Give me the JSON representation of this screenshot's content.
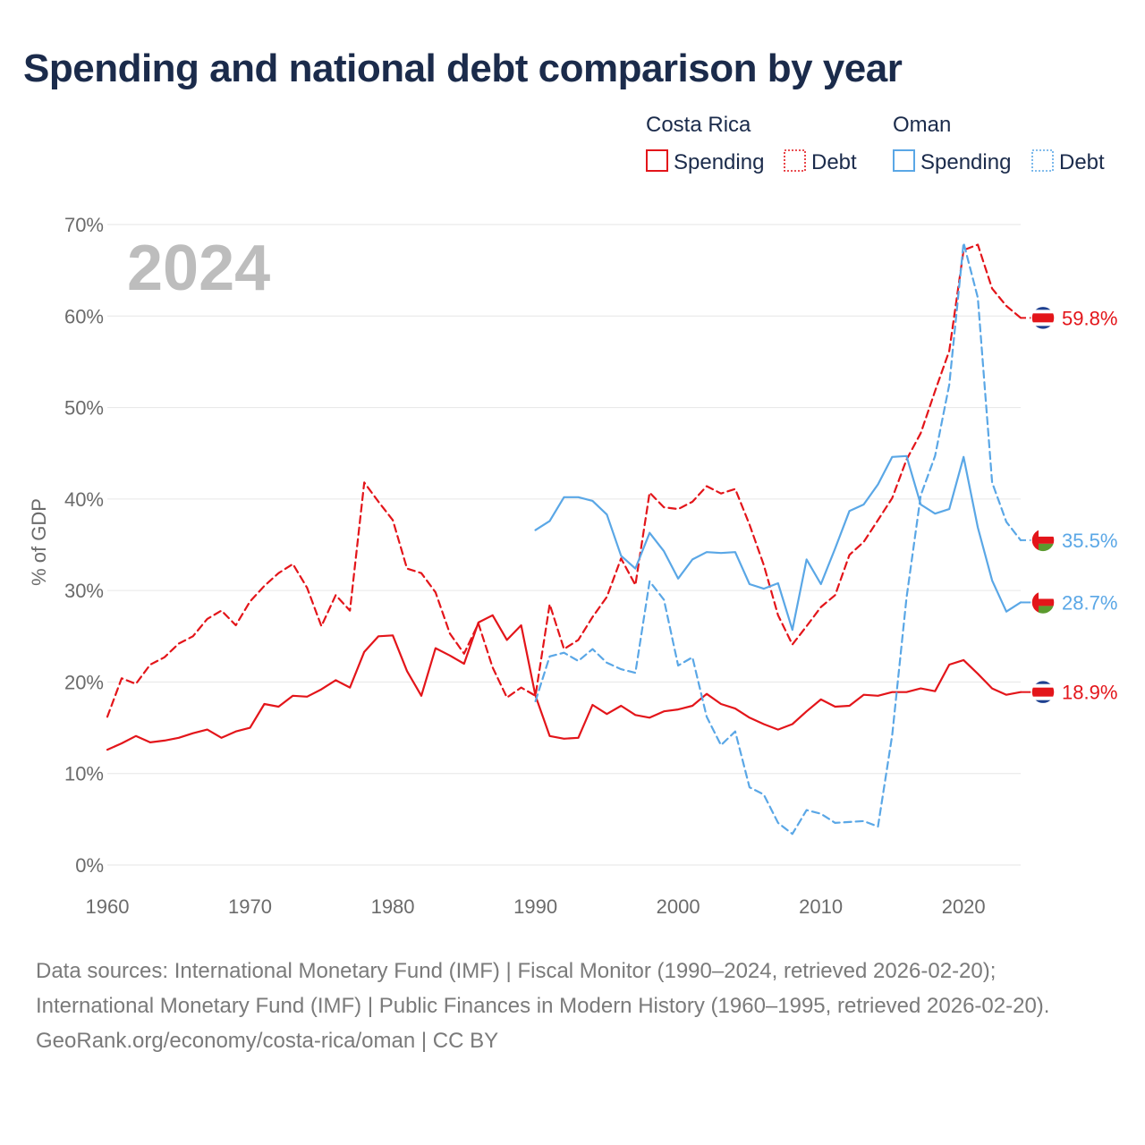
{
  "title": "Spending and national debt comparison by year",
  "colors": {
    "costa_rica": "#e3151a",
    "oman": "#5aa7e6",
    "grid": "#e6e6e6",
    "tick": "#6b6b6b",
    "title": "#1b2b4b",
    "watermark": "#bdbdbd",
    "flag_blue": "#1d3f8f",
    "flag_red": "#e3151a",
    "flag_green": "#5b9a2e"
  },
  "legend": {
    "groups": [
      {
        "name": "Costa Rica",
        "items": [
          {
            "label": "Spending",
            "style": "solid"
          },
          {
            "label": "Debt",
            "style": "dotted"
          }
        ]
      },
      {
        "name": "Oman",
        "items": [
          {
            "label": "Spending",
            "style": "solid"
          },
          {
            "label": "Debt",
            "style": "dotted"
          }
        ]
      }
    ]
  },
  "year_watermark": "2024",
  "footer": {
    "sources": "Data sources: International Monetary Fund (IMF) | Fiscal Monitor (1990–2024, retrieved 2026-02-20); International Monetary Fund (IMF) | Public Finances in Modern History (1960–1995, retrieved 2026-02-20).",
    "credit": "GeoRank.org/economy/costa-rica/oman | CC BY"
  },
  "chart_data": {
    "type": "line",
    "title": "Spending and national debt comparison by year",
    "xlabel": "",
    "ylabel": "% of GDP",
    "xlim": [
      1960,
      2024
    ],
    "ylim": [
      0,
      70
    ],
    "x_ticks": [
      1960,
      1970,
      1980,
      1990,
      2000,
      2010,
      2020
    ],
    "y_ticks": [
      0,
      10,
      20,
      30,
      40,
      50,
      60,
      70
    ],
    "y_tick_labels": [
      "0%",
      "10%",
      "20%",
      "30%",
      "40%",
      "50%",
      "60%",
      "70%"
    ],
    "grid": true,
    "legend_position": "top-right",
    "series": [
      {
        "name": "Costa Rica Spending",
        "country": "Costa Rica",
        "metric": "Spending",
        "style": "solid",
        "color": "#e3151a",
        "start_year": 1960,
        "values": [
          12.6,
          13.3,
          14.1,
          13.4,
          13.6,
          13.9,
          14.4,
          14.8,
          13.9,
          14.6,
          15.0,
          17.6,
          17.3,
          18.5,
          18.4,
          19.2,
          20.2,
          19.4,
          23.3,
          25.0,
          25.1,
          21.2,
          18.5,
          23.7,
          22.9,
          22.0,
          26.5,
          27.3,
          24.6,
          26.2,
          18.5,
          14.1,
          13.8,
          13.9,
          17.5,
          16.5,
          17.4,
          16.4,
          16.1,
          16.8,
          17.0,
          17.4,
          18.7,
          17.6,
          17.1,
          16.1,
          15.4,
          14.8,
          15.4,
          16.8,
          18.1,
          17.3,
          17.4,
          18.6,
          18.5,
          18.9,
          18.9,
          19.3,
          19.0,
          21.9,
          22.4,
          20.9,
          19.3,
          18.6,
          18.9
        ],
        "end_label": "18.9%"
      },
      {
        "name": "Costa Rica Debt",
        "country": "Costa Rica",
        "metric": "Debt",
        "style": "dashed",
        "color": "#e3151a",
        "start_year": 1960,
        "values": [
          16.2,
          20.4,
          19.8,
          21.9,
          22.7,
          24.2,
          25.0,
          26.9,
          27.8,
          26.2,
          28.8,
          30.5,
          31.9,
          32.9,
          30.3,
          26.1,
          29.5,
          27.8,
          41.8,
          39.7,
          37.7,
          32.4,
          31.9,
          29.8,
          25.3,
          23.1,
          26.4,
          21.6,
          18.3,
          19.4,
          18.5,
          28.5,
          23.6,
          24.6,
          27.1,
          29.3,
          33.5,
          30.6,
          40.7,
          39.1,
          38.9,
          39.7,
          41.4,
          40.6,
          41.1,
          37.2,
          32.8,
          27.3,
          24.1,
          26.1,
          28.2,
          29.5,
          33.9,
          35.3,
          37.7,
          40.1,
          44.3,
          47.2,
          51.8,
          56.2,
          67.2,
          67.8,
          63.0,
          61.1,
          59.8
        ],
        "end_label": "59.8%"
      },
      {
        "name": "Oman Spending",
        "country": "Oman",
        "metric": "Spending",
        "style": "solid",
        "color": "#5aa7e6",
        "start_year": 1990,
        "values": [
          36.6,
          37.6,
          40.2,
          40.2,
          39.8,
          38.3,
          33.8,
          32.4,
          36.3,
          34.3,
          31.3,
          33.4,
          34.2,
          34.1,
          34.2,
          30.7,
          30.2,
          30.8,
          25.7,
          33.4,
          30.7,
          34.6,
          38.7,
          39.4,
          41.6,
          44.6,
          44.7,
          39.4,
          38.4,
          38.9,
          44.6,
          36.9,
          31.1,
          27.7,
          28.7
        ],
        "end_label": "28.7%"
      },
      {
        "name": "Oman Debt",
        "country": "Oman",
        "metric": "Debt",
        "style": "dashed",
        "color": "#5aa7e6",
        "start_year": 1990,
        "values": [
          17.9,
          22.8,
          23.2,
          22.3,
          23.6,
          22.1,
          21.4,
          21.0,
          31.0,
          29.0,
          21.8,
          22.7,
          16.2,
          13.1,
          14.6,
          8.5,
          7.7,
          4.6,
          3.4,
          6.0,
          5.6,
          4.6,
          4.7,
          4.8,
          4.2,
          14.2,
          29.2,
          40.4,
          44.7,
          52.5,
          68.0,
          62.0,
          41.8,
          37.5,
          35.5
        ],
        "end_label": "35.5%"
      }
    ]
  }
}
